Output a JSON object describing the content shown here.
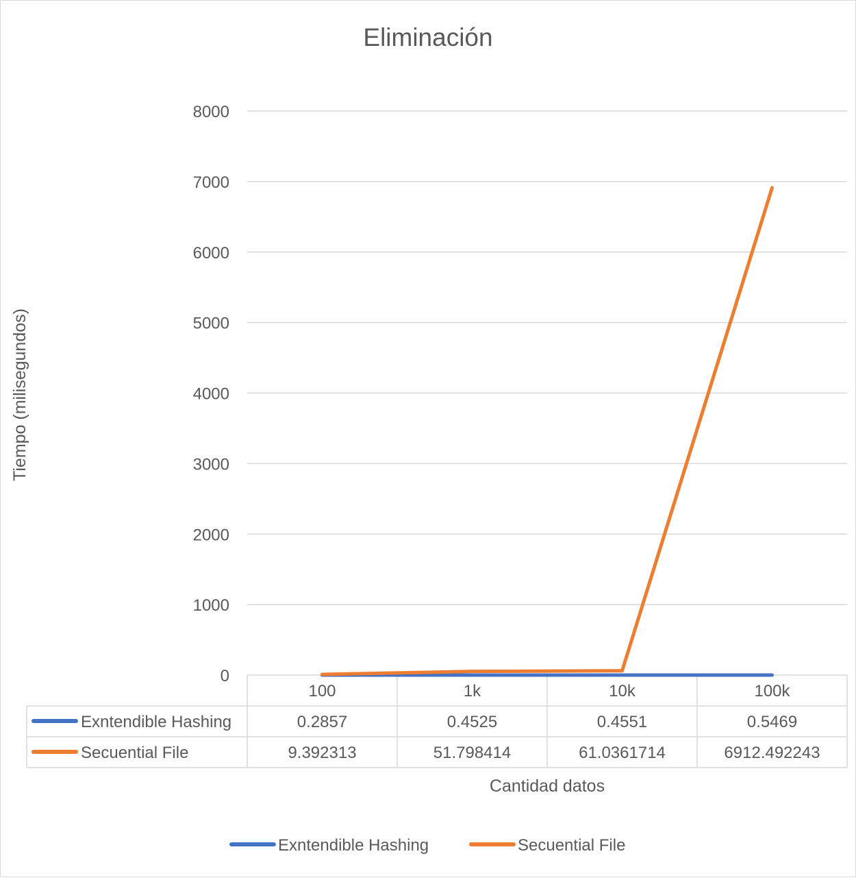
{
  "chart_data": {
    "type": "line",
    "title": "Eliminación",
    "xlabel": "Cantidad datos",
    "ylabel": "Tiempo (milisegundos)",
    "categories": [
      "100",
      "1k",
      "10k",
      "100k"
    ],
    "ylim": [
      0,
      8000
    ],
    "yticks": [
      0,
      1000,
      2000,
      3000,
      4000,
      5000,
      6000,
      7000,
      8000
    ],
    "grid": true,
    "legend_position": "bottom",
    "data_table": true,
    "series": [
      {
        "name": "Exntendible Hashing",
        "color": "#4472C4",
        "values": [
          0.2857,
          0.4525,
          0.4551,
          0.5469
        ],
        "labels": [
          "0.2857",
          "0.4525",
          "0.4551",
          "0.5469"
        ]
      },
      {
        "name": "Secuential File",
        "color": "#ED7D31",
        "values": [
          9.392313,
          51.798414,
          61.0361714,
          6912.492243
        ],
        "labels": [
          "9.392313",
          "51.798414",
          "61.0361714",
          "6912.492243"
        ]
      }
    ]
  }
}
